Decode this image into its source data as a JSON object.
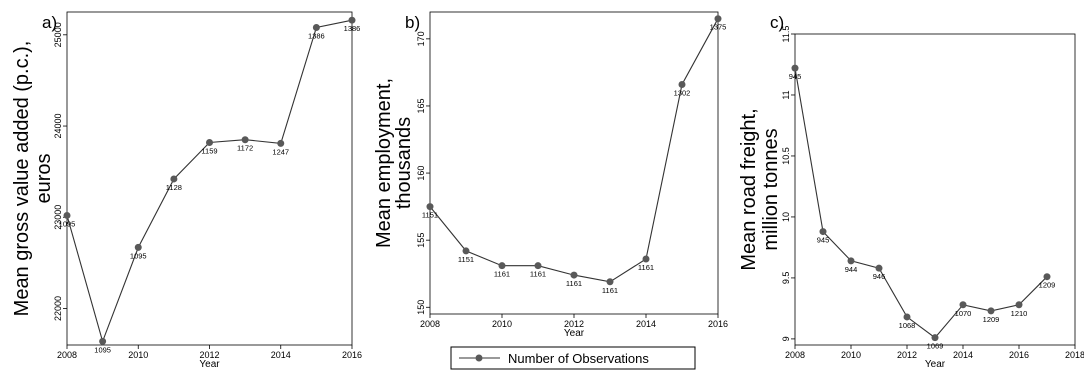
{
  "legend": {
    "label": "Number of Observations",
    "line_color": "#333333",
    "marker_color": "#595959"
  },
  "chart_data": [
    {
      "type": "line",
      "panel": "a)",
      "ylabel_lines": [
        "Mean gross value added (p.c.),",
        "euros"
      ],
      "xlabel": "Year",
      "xlim": [
        2008,
        2016
      ],
      "ylim": [
        21600,
        25250
      ],
      "xticks": [
        2008,
        2010,
        2012,
        2014,
        2016
      ],
      "yticks": [
        22000,
        23000,
        24000,
        25000
      ],
      "x": [
        2008,
        2009,
        2010,
        2011,
        2012,
        2013,
        2014,
        2015,
        2016
      ],
      "y": [
        23020,
        21640,
        22670,
        23420,
        23820,
        23850,
        23810,
        25080,
        25160
      ],
      "labels": [
        "1095",
        "1095",
        "1095",
        "1128",
        "1159",
        "1172",
        "1247",
        "1386",
        "1386"
      ],
      "label_pos": [
        "below",
        "below",
        "below",
        "below",
        "below",
        "below",
        "below",
        "below",
        "below"
      ]
    },
    {
      "type": "line",
      "panel": "b)",
      "ylabel_lines": [
        "Mean employment,",
        "thousands"
      ],
      "xlabel": "Year",
      "xlim": [
        2008,
        2016
      ],
      "ylim": [
        149.5,
        172
      ],
      "xticks": [
        2008,
        2010,
        2012,
        2014,
        2016
      ],
      "yticks": [
        150,
        155,
        160,
        165,
        170
      ],
      "x": [
        2008,
        2009,
        2010,
        2011,
        2012,
        2013,
        2014,
        2015,
        2016
      ],
      "y": [
        157.5,
        154.2,
        153.1,
        153.1,
        152.4,
        151.9,
        153.6,
        166.6,
        171.5
      ],
      "labels": [
        "1151",
        "1151",
        "1161",
        "1161",
        "1161",
        "1161",
        "1161",
        "1302",
        "1375"
      ],
      "label_pos": [
        "below",
        "below",
        "below",
        "below",
        "below",
        "below",
        "below",
        "below",
        "below"
      ]
    },
    {
      "type": "line",
      "panel": "c)",
      "ylabel_lines": [
        "Mean road freight,",
        "million tonnes"
      ],
      "xlabel": "Year",
      "xlim": [
        2008,
        2018
      ],
      "ylim": [
        8.95,
        11.5
      ],
      "xticks": [
        2008,
        2010,
        2012,
        2014,
        2016,
        2018
      ],
      "yticks": [
        9,
        9.5,
        10,
        10.5,
        11,
        11.5
      ],
      "x": [
        2008,
        2009,
        2010,
        2011,
        2012,
        2013,
        2014,
        2015,
        2016,
        2017
      ],
      "y": [
        11.22,
        9.88,
        9.64,
        9.58,
        9.18,
        9.01,
        9.28,
        9.23,
        9.28,
        9.51
      ],
      "labels": [
        "945",
        "945",
        "944",
        "946",
        "1068",
        "1069",
        "1070",
        "1209",
        "1210",
        "1209"
      ],
      "label_pos": [
        "below",
        "below",
        "below",
        "below",
        "below",
        "below",
        "below",
        "below",
        "below",
        "below"
      ]
    }
  ]
}
